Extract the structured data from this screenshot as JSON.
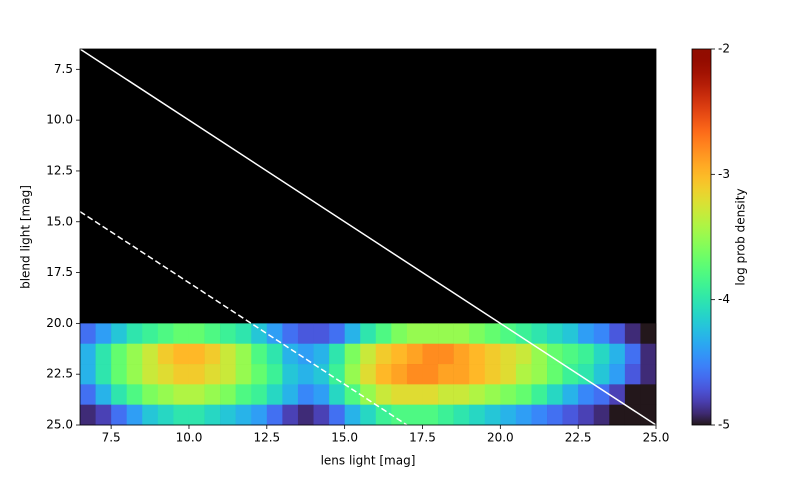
{
  "chart_data": {
    "type": "heatmap",
    "xlabel": "lens light [mag]",
    "ylabel": "blend light [mag]",
    "xlim": [
      6.5,
      25
    ],
    "ylim": [
      25,
      6.5
    ],
    "xticks": [
      7.5,
      {
        "value": 10,
        "label": "10.0"
      },
      12.5,
      {
        "value": 15,
        "label": "15.0"
      },
      17.5,
      {
        "value": 20,
        "label": "20.0"
      },
      22.5,
      {
        "value": 25,
        "label": "25.0"
      }
    ],
    "yticks": [
      7.5,
      {
        "value": 10,
        "label": "10.0"
      },
      12.5,
      {
        "value": 15,
        "label": "15.0"
      },
      17.5,
      {
        "value": 20,
        "label": "20.0"
      },
      22.5,
      {
        "value": 25,
        "label": "25.0"
      }
    ],
    "background": "#000000",
    "colormap": "turbo",
    "clim": [
      -5,
      -2
    ],
    "cticks": [
      -2,
      -3,
      -4,
      -5
    ],
    "clabel": "log prob density",
    "xbins": [
      6.5,
      7,
      7.5,
      8,
      8.5,
      9,
      9.5,
      10,
      10.5,
      11,
      11.5,
      12,
      12.5,
      13,
      13.5,
      14,
      14.5,
      15,
      15.5,
      16,
      16.5,
      17,
      17.5,
      18,
      18.5,
      19,
      19.5,
      20,
      20.5,
      21,
      21.5,
      22,
      22.5,
      23,
      23.5,
      24,
      24.5,
      25
    ],
    "ybins": [
      20,
      21,
      22,
      23,
      24,
      25
    ],
    "z": [
      [
        -4.6,
        -4.4,
        -4.2,
        -4.0,
        -3.9,
        -3.8,
        -3.7,
        -3.7,
        -3.8,
        -3.9,
        -4.0,
        -4.2,
        -4.4,
        -4.6,
        -4.7,
        -4.7,
        -4.6,
        -4.3,
        -4.0,
        -3.8,
        -3.6,
        -3.5,
        -3.5,
        -3.5,
        -3.5,
        -3.6,
        -3.7,
        -3.8,
        -3.9,
        -4.0,
        -4.1,
        -4.2,
        -4.4,
        -4.5,
        -4.7,
        -4.9,
        -5.0
      ],
      [
        -4.3,
        -4.0,
        -3.7,
        -3.5,
        -3.3,
        -3.1,
        -3.0,
        -3.0,
        -3.1,
        -3.3,
        -3.5,
        -3.8,
        -4.0,
        -4.3,
        -4.4,
        -4.3,
        -4.0,
        -3.6,
        -3.3,
        -3.1,
        -3.0,
        -2.9,
        -2.8,
        -2.8,
        -2.9,
        -3.0,
        -3.1,
        -3.2,
        -3.3,
        -3.5,
        -3.7,
        -3.8,
        -3.9,
        -4.1,
        -4.3,
        -4.6,
        -4.9
      ],
      [
        -4.3,
        -4.0,
        -3.7,
        -3.5,
        -3.3,
        -3.2,
        -3.1,
        -3.1,
        -3.2,
        -3.3,
        -3.5,
        -3.7,
        -3.9,
        -4.2,
        -4.3,
        -4.2,
        -3.9,
        -3.5,
        -3.2,
        -3.0,
        -2.9,
        -2.8,
        -2.8,
        -2.9,
        -2.9,
        -3.0,
        -3.1,
        -3.2,
        -3.4,
        -3.5,
        -3.7,
        -3.9,
        -4.0,
        -4.2,
        -4.4,
        -4.7,
        -4.9
      ],
      [
        -4.6,
        -4.3,
        -4.0,
        -3.8,
        -3.6,
        -3.5,
        -3.4,
        -3.4,
        -3.5,
        -3.6,
        -3.8,
        -3.9,
        -4.1,
        -4.3,
        -4.5,
        -4.4,
        -4.1,
        -3.8,
        -3.5,
        -3.3,
        -3.2,
        -3.2,
        -3.2,
        -3.3,
        -3.3,
        -3.4,
        -3.5,
        -3.6,
        -3.7,
        -3.9,
        -4.1,
        -4.3,
        -4.5,
        -4.6,
        -4.8,
        -5.0,
        -5.0
      ],
      [
        -4.9,
        -4.8,
        -4.6,
        -4.4,
        -4.2,
        -4.1,
        -4.0,
        -4.0,
        -4.1,
        -4.2,
        -4.3,
        -4.4,
        -4.6,
        -4.8,
        -4.9,
        -4.8,
        -4.6,
        -4.3,
        -4.1,
        -3.9,
        -3.8,
        -3.8,
        -3.8,
        -3.9,
        -4.0,
        -4.1,
        -4.2,
        -4.3,
        -4.4,
        -4.5,
        -4.6,
        -4.7,
        -4.8,
        -4.9,
        -5.0,
        -5.0,
        -5.0
      ]
    ],
    "lines": [
      {
        "x": [
          6.5,
          25
        ],
        "y": [
          6.5,
          25
        ],
        "color": "#ffffff",
        "dashed": false
      },
      {
        "x": [
          6.5,
          17
        ],
        "y": [
          14.5,
          25
        ],
        "color": "#ffffff",
        "dashed": true
      }
    ]
  }
}
